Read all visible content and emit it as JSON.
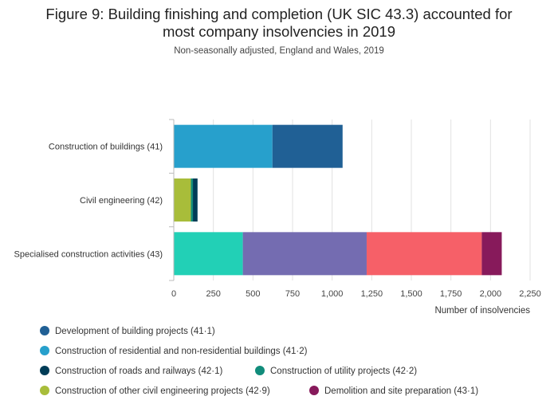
{
  "title_line1": "Figure 9: Building finishing and completion (UK SIC 43.3) accounted for",
  "title_line2": "most company insolvencies in 2019",
  "subtitle": "Non-seasonally adjusted, England and Wales, 2019",
  "chart_data": {
    "type": "bar",
    "orientation": "horizontal",
    "stacked": true,
    "categories": [
      "Construction of buildings (41)",
      "Civil engineering (42)",
      "Specialised construction activities (43)"
    ],
    "series": [
      {
        "name": "Construction of residential and non-residential buildings (41·2)",
        "color": "#27a0cc",
        "values": [
          623,
          0,
          0
        ]
      },
      {
        "name": "Development of building projects (41·1)",
        "color": "#206095",
        "values": [
          443,
          0,
          0
        ]
      },
      {
        "name": "Construction of other civil engineering projects (42·9)",
        "color": "#a8bd3a",
        "values": [
          0,
          108,
          0
        ]
      },
      {
        "name": "Construction of utility projects (42·2)",
        "color": "#118c7b",
        "values": [
          0,
          13,
          0
        ]
      },
      {
        "name": "Construction of roads and railways (42·1)",
        "color": "#003c57",
        "values": [
          0,
          29,
          0
        ]
      },
      {
        "name": "",
        "color": "#22d0b6",
        "values": [
          0,
          0,
          436
        ]
      },
      {
        "name": "",
        "color": "#746cb1",
        "values": [
          0,
          0,
          782
        ]
      },
      {
        "name": "",
        "color": "#f66068",
        "values": [
          0,
          0,
          727
        ]
      },
      {
        "name": "Demolition and site preparation (43·1)",
        "color": "#871a5b",
        "values": [
          0,
          0,
          126
        ]
      }
    ],
    "xlabel": "Number of insolvencies",
    "xlim": [
      0,
      2250
    ],
    "xticks": [
      0,
      250,
      500,
      750,
      1000,
      1250,
      1500,
      1750,
      2000,
      2250
    ],
    "xtick_labels": [
      "0",
      "250",
      "500",
      "750",
      "1,000",
      "1,250",
      "1,500",
      "1,750",
      "2,000",
      "2,250"
    ],
    "grid": true,
    "legend_placement": "bottom"
  },
  "legend": [
    {
      "label": "Development of building projects (41·1)",
      "color": "#206095"
    },
    {
      "label": "Construction of residential and non-residential buildings (41·2)",
      "color": "#27a0cc"
    },
    {
      "label": "Construction of roads and railways (42·1)",
      "color": "#003c57"
    },
    {
      "label": "Construction of utility projects (42·2)",
      "color": "#118c7b"
    },
    {
      "label": "Construction of other civil engineering projects (42·9)",
      "color": "#a8bd3a"
    },
    {
      "label": "Demolition and site preparation (43·1)",
      "color": "#871a5b"
    }
  ]
}
